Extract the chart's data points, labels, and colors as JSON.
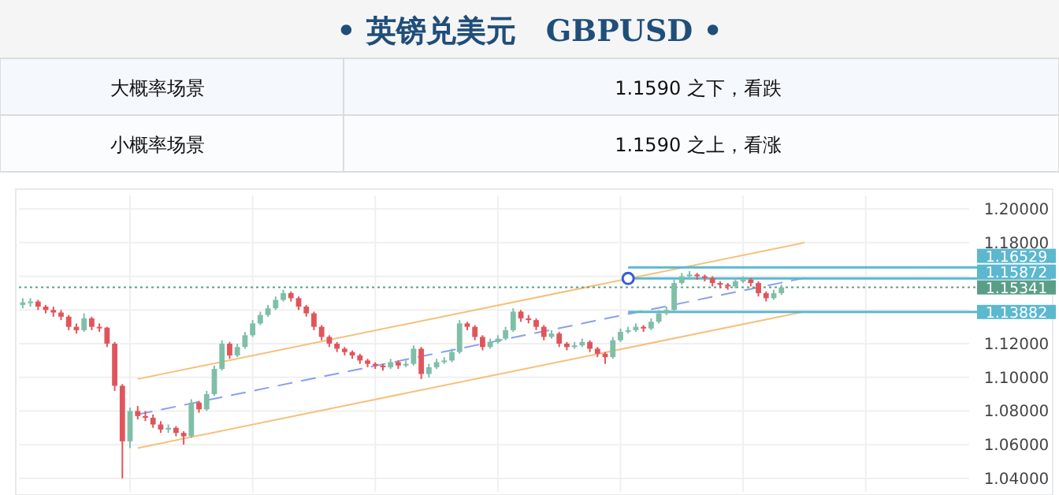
{
  "chart_data": {
    "type": "candlestick",
    "title": "• 英镑兑美元　GBPUSD •",
    "annotations": [
      "大概率场景",
      "1.1590 之下，看跌",
      "小概率场景",
      "1.1590 之上，看涨"
    ],
    "categories": [
      null,
      null,
      null,
      null,
      null,
      null,
      null,
      null,
      null,
      null,
      null,
      null,
      null,
      null,
      null,
      null,
      null,
      null,
      null,
      null,
      null,
      null,
      null,
      null,
      null,
      null,
      null,
      null,
      null,
      null,
      null,
      null,
      null,
      null,
      null,
      null,
      null,
      null,
      null,
      null,
      null,
      null,
      null,
      null,
      null,
      null,
      null,
      null,
      null,
      null,
      null,
      null,
      null,
      null,
      null,
      null,
      null,
      null,
      null,
      null,
      null,
      null,
      null,
      null,
      null,
      null,
      null,
      null,
      null,
      null,
      null,
      null,
      null,
      null,
      null,
      null,
      null,
      null,
      null,
      null,
      null,
      null,
      null,
      null,
      null,
      null,
      null,
      null,
      null,
      null,
      null,
      null,
      null,
      null,
      null,
      null,
      null,
      null,
      null,
      null,
      null,
      null,
      null,
      null,
      null,
      null,
      null,
      null,
      null,
      null,
      null,
      null,
      null,
      null,
      null,
      null,
      null,
      null,
      null,
      null,
      null,
      null,
      null,
      null
    ],
    "ohlc": [
      [
        1.143,
        1.147,
        1.141,
        1.1445
      ],
      [
        1.1445,
        1.147,
        1.142,
        1.145
      ],
      [
        1.145,
        1.146,
        1.14,
        1.142
      ],
      [
        1.142,
        1.143,
        1.138,
        1.14
      ],
      [
        1.14,
        1.142,
        1.136,
        1.1385
      ],
      [
        1.1385,
        1.14,
        1.134,
        1.136
      ],
      [
        1.136,
        1.137,
        1.128,
        1.13
      ],
      [
        1.13,
        1.132,
        1.126,
        1.128
      ],
      [
        1.128,
        1.138,
        1.127,
        1.135
      ],
      [
        1.135,
        1.136,
        1.128,
        1.13
      ],
      [
        1.13,
        1.132,
        1.127,
        1.1295
      ],
      [
        1.1295,
        1.13,
        1.118,
        1.12
      ],
      [
        1.12,
        1.121,
        1.092,
        1.095
      ],
      [
        1.095,
        1.096,
        1.04,
        1.062
      ],
      [
        1.062,
        1.082,
        1.058,
        1.08
      ],
      [
        1.08,
        1.083,
        1.075,
        1.077
      ],
      [
        1.077,
        1.08,
        1.074,
        1.076
      ],
      [
        1.076,
        1.078,
        1.07,
        1.072
      ],
      [
        1.072,
        1.074,
        1.067,
        1.069
      ],
      [
        1.069,
        1.072,
        1.067,
        1.07
      ],
      [
        1.07,
        1.071,
        1.065,
        1.067
      ],
      [
        1.067,
        1.068,
        1.06,
        1.065
      ],
      [
        1.065,
        1.087,
        1.064,
        1.085
      ],
      [
        1.085,
        1.086,
        1.079,
        1.081
      ],
      [
        1.081,
        1.092,
        1.08,
        1.09
      ],
      [
        1.09,
        1.107,
        1.089,
        1.105
      ],
      [
        1.105,
        1.122,
        1.104,
        1.12
      ],
      [
        1.12,
        1.121,
        1.111,
        1.113
      ],
      [
        1.113,
        1.12,
        1.112,
        1.118
      ],
      [
        1.118,
        1.127,
        1.117,
        1.125
      ],
      [
        1.125,
        1.134,
        1.124,
        1.132
      ],
      [
        1.132,
        1.139,
        1.131,
        1.137
      ],
      [
        1.137,
        1.143,
        1.136,
        1.141
      ],
      [
        1.141,
        1.148,
        1.14,
        1.146
      ],
      [
        1.146,
        1.152,
        1.145,
        1.15
      ],
      [
        1.15,
        1.151,
        1.145,
        1.147
      ],
      [
        1.147,
        1.148,
        1.14,
        1.142
      ],
      [
        1.142,
        1.143,
        1.136,
        1.138
      ],
      [
        1.138,
        1.139,
        1.128,
        1.13
      ],
      [
        1.13,
        1.131,
        1.122,
        1.124
      ],
      [
        1.124,
        1.125,
        1.118,
        1.12
      ],
      [
        1.12,
        1.121,
        1.115,
        1.117
      ],
      [
        1.117,
        1.118,
        1.113,
        1.115
      ],
      [
        1.115,
        1.116,
        1.111,
        1.113
      ],
      [
        1.113,
        1.114,
        1.108,
        1.11
      ],
      [
        1.11,
        1.111,
        1.106,
        1.108
      ],
      [
        1.108,
        1.109,
        1.105,
        1.107
      ],
      [
        1.107,
        1.108,
        1.104,
        1.106
      ],
      [
        1.106,
        1.111,
        1.105,
        1.109
      ],
      [
        1.109,
        1.11,
        1.105,
        1.107
      ],
      [
        1.107,
        1.11,
        1.106,
        1.108
      ],
      [
        1.108,
        1.119,
        1.107,
        1.117
      ],
      [
        1.117,
        1.118,
        1.099,
        1.102
      ],
      [
        1.102,
        1.108,
        1.1,
        1.106
      ],
      [
        1.106,
        1.111,
        1.105,
        1.109
      ],
      [
        1.109,
        1.112,
        1.108,
        1.11
      ],
      [
        1.11,
        1.117,
        1.109,
        1.115
      ],
      [
        1.115,
        1.134,
        1.114,
        1.132
      ],
      [
        1.132,
        1.133,
        1.128,
        1.13
      ],
      [
        1.13,
        1.131,
        1.122,
        1.124
      ],
      [
        1.124,
        1.125,
        1.116,
        1.118
      ],
      [
        1.118,
        1.123,
        1.117,
        1.121
      ],
      [
        1.121,
        1.125,
        1.12,
        1.123
      ],
      [
        1.123,
        1.13,
        1.122,
        1.128
      ],
      [
        1.128,
        1.141,
        1.127,
        1.139
      ],
      [
        1.139,
        1.14,
        1.133,
        1.135
      ],
      [
        1.135,
        1.137,
        1.132,
        1.134
      ],
      [
        1.134,
        1.135,
        1.128,
        1.13
      ],
      [
        1.13,
        1.131,
        1.122,
        1.124
      ],
      [
        1.124,
        1.128,
        1.123,
        1.126
      ],
      [
        1.126,
        1.127,
        1.118,
        1.12
      ],
      [
        1.12,
        1.121,
        1.116,
        1.118
      ],
      [
        1.118,
        1.121,
        1.117,
        1.119
      ],
      [
        1.119,
        1.123,
        1.118,
        1.121
      ],
      [
        1.121,
        1.122,
        1.115,
        1.117
      ],
      [
        1.117,
        1.118,
        1.112,
        1.114
      ],
      [
        1.114,
        1.115,
        1.108,
        1.112
      ],
      [
        1.112,
        1.124,
        1.111,
        1.122
      ],
      [
        1.122,
        1.129,
        1.121,
        1.127
      ],
      [
        1.127,
        1.13,
        1.126,
        1.128
      ],
      [
        1.128,
        1.132,
        1.127,
        1.13
      ],
      [
        1.13,
        1.131,
        1.127,
        1.129
      ],
      [
        1.129,
        1.135,
        1.128,
        1.133
      ],
      [
        1.133,
        1.14,
        1.132,
        1.138
      ],
      [
        1.138,
        1.142,
        1.137,
        1.14
      ],
      [
        1.14,
        1.158,
        1.139,
        1.156
      ],
      [
        1.156,
        1.162,
        1.155,
        1.16
      ],
      [
        1.16,
        1.163,
        1.158,
        1.161
      ],
      [
        1.161,
        1.162,
        1.158,
        1.16
      ],
      [
        1.16,
        1.161,
        1.157,
        1.159
      ],
      [
        1.159,
        1.16,
        1.154,
        1.156
      ],
      [
        1.156,
        1.157,
        1.153,
        1.155
      ],
      [
        1.155,
        1.156,
        1.152,
        1.154
      ],
      [
        1.154,
        1.159,
        1.153,
        1.157
      ],
      [
        1.157,
        1.16,
        1.156,
        1.158
      ],
      [
        1.158,
        1.159,
        1.154,
        1.156
      ],
      [
        1.156,
        1.157,
        1.148,
        1.15
      ],
      [
        1.15,
        1.151,
        1.145,
        1.147
      ],
      [
        1.147,
        1.152,
        1.146,
        1.15
      ],
      [
        1.15,
        1.155,
        1.149,
        1.1534
      ],
      null,
      null,
      null,
      null,
      null,
      null,
      null,
      null,
      null,
      null,
      null,
      null,
      null,
      null,
      null,
      null,
      null,
      null,
      null,
      null,
      null,
      null,
      null,
      null
    ],
    "series": [
      {
        "type": "line",
        "color": "#f5c07a",
        "values": [
          null,
          null,
          null,
          null,
          null,
          null,
          null,
          null,
          null,
          null,
          null,
          null,
          null,
          null,
          null,
          1.099,
          null,
          null,
          null,
          null,
          null,
          null,
          null,
          null,
          null,
          null,
          null,
          null,
          null,
          null,
          null,
          null,
          null,
          null,
          null,
          null,
          null,
          null,
          null,
          null,
          null,
          null,
          null,
          null,
          null,
          null,
          null,
          null,
          null,
          null,
          null,
          null,
          null,
          null,
          null,
          null,
          null,
          null,
          null,
          null,
          null,
          null,
          null,
          null,
          null,
          null,
          null,
          null,
          null,
          null,
          null,
          null,
          null,
          null,
          null,
          null,
          null,
          null,
          null,
          null,
          null,
          null,
          null,
          null,
          null,
          null,
          null,
          null,
          null,
          null,
          null,
          null,
          null,
          null,
          null,
          null,
          null,
          null,
          null,
          null,
          null,
          null,
          1.18,
          null,
          null,
          null,
          null,
          null,
          null,
          null,
          null,
          null,
          null,
          null,
          null,
          null,
          null,
          null,
          null,
          null,
          null,
          null,
          null,
          null
        ]
      },
      {
        "type": "line",
        "color": "#f5c07a",
        "values": [
          null,
          null,
          null,
          null,
          null,
          null,
          null,
          null,
          null,
          null,
          null,
          null,
          null,
          null,
          null,
          1.058,
          null,
          null,
          null,
          null,
          null,
          null,
          null,
          null,
          null,
          null,
          null,
          null,
          null,
          null,
          null,
          null,
          null,
          null,
          null,
          null,
          null,
          null,
          null,
          null,
          null,
          null,
          null,
          null,
          null,
          null,
          null,
          null,
          null,
          null,
          null,
          null,
          null,
          null,
          null,
          null,
          null,
          null,
          null,
          null,
          null,
          null,
          null,
          null,
          null,
          null,
          null,
          null,
          null,
          null,
          null,
          null,
          null,
          null,
          null,
          null,
          null,
          null,
          null,
          null,
          null,
          null,
          null,
          null,
          null,
          null,
          null,
          null,
          null,
          null,
          null,
          null,
          null,
          null,
          null,
          null,
          null,
          null,
          null,
          null,
          null,
          null,
          1.139,
          null,
          null,
          null,
          null,
          null,
          null,
          null,
          null,
          null,
          null,
          null,
          null,
          null,
          null,
          null,
          null,
          null,
          null,
          null,
          null,
          null
        ]
      },
      {
        "type": "line",
        "color": "#8a9ef0",
        "line_style": "dashed",
        "values": [
          null,
          null,
          null,
          null,
          null,
          null,
          null,
          null,
          null,
          null,
          null,
          null,
          null,
          null,
          null,
          1.078,
          null,
          null,
          null,
          null,
          null,
          null,
          null,
          null,
          null,
          null,
          null,
          null,
          null,
          null,
          null,
          null,
          null,
          null,
          null,
          null,
          null,
          null,
          null,
          null,
          null,
          null,
          null,
          null,
          null,
          null,
          null,
          null,
          null,
          null,
          null,
          null,
          null,
          null,
          null,
          null,
          null,
          null,
          null,
          null,
          null,
          null,
          null,
          null,
          null,
          null,
          null,
          null,
          null,
          null,
          null,
          null,
          null,
          null,
          null,
          null,
          null,
          null,
          null,
          null,
          null,
          null,
          null,
          null,
          null,
          null,
          null,
          null,
          null,
          null,
          null,
          null,
          null,
          null,
          null,
          null,
          null,
          null,
          null,
          null,
          null,
          null,
          1.159,
          null,
          null,
          null,
          null,
          null,
          null,
          null,
          null,
          null,
          null,
          null,
          null,
          null,
          null,
          null,
          null,
          null,
          null,
          null,
          null,
          null
        ]
      }
    ],
    "ylim": [
      1.032,
      1.208
    ],
    "yticks": [
      {
        "value": 1.04,
        "label": "1.04000"
      },
      {
        "value": 1.06,
        "label": "1.06000"
      },
      {
        "value": 1.08,
        "label": "1.08000"
      },
      {
        "value": 1.1,
        "label": "1.10000"
      },
      {
        "value": 1.12,
        "label": "1.12000"
      },
      {
        "value": 1.14,
        "label": null
      },
      {
        "value": 1.16,
        "label": null
      },
      {
        "value": 1.18,
        "label": "1.18000"
      },
      {
        "value": 1.2,
        "label": "1.20000"
      }
    ],
    "ref_lines": [
      {
        "axis": "y",
        "value": 1.16529,
        "label": "1.16529",
        "color": "#5bb8cf"
      },
      {
        "axis": "y",
        "value": 1.15872,
        "label": "1.15872",
        "color": "#5bb8cf"
      },
      {
        "axis": "y",
        "value": 1.15341,
        "label": "1.15341",
        "color": "#5a9e88",
        "line_style": "dotted"
      },
      {
        "axis": "y",
        "value": 1.13882,
        "label": "1.13882",
        "color": "#5bb8cf"
      }
    ],
    "grid": true,
    "tick_labels": "y"
  }
}
